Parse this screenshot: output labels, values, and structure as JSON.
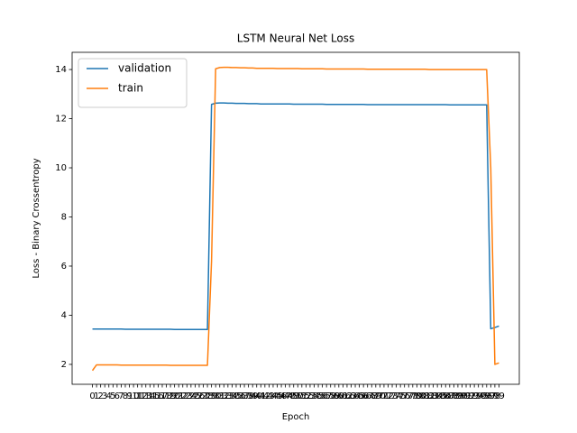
{
  "chart_data": {
    "type": "line",
    "title": "LSTM Neural Net Loss",
    "x_label": "Epoch",
    "y_label": "Loss - Binary Crossentropy",
    "categories": [
      "0",
      "1",
      "2",
      "3",
      "4",
      "5",
      "6",
      "7",
      "8",
      "9",
      "10",
      "11",
      "12",
      "13",
      "14",
      "15",
      "16",
      "17",
      "18",
      "19",
      "20",
      "21",
      "22",
      "23",
      "24",
      "25",
      "26",
      "27",
      "28",
      "29",
      "30",
      "31",
      "32",
      "33",
      "34",
      "35",
      "36",
      "37",
      "38",
      "39",
      "40",
      "41",
      "42",
      "43",
      "44",
      "45",
      "46",
      "47",
      "48",
      "49",
      "50",
      "51",
      "52",
      "53",
      "54",
      "55",
      "56",
      "57",
      "58",
      "59",
      "60",
      "61",
      "62",
      "63",
      "64",
      "65",
      "66",
      "67",
      "68",
      "69",
      "70",
      "71",
      "72",
      "73",
      "74",
      "75",
      "76",
      "77",
      "78",
      "79",
      "80",
      "81",
      "82",
      "83",
      "84",
      "85",
      "86",
      "87",
      "88",
      "89",
      "90",
      "91",
      "92",
      "93",
      "94",
      "95",
      "96",
      "97",
      "98",
      "99"
    ],
    "series": [
      {
        "name": "validation",
        "color": "#1f77b4",
        "values": [
          3.44,
          3.44,
          3.44,
          3.44,
          3.44,
          3.44,
          3.44,
          3.44,
          3.43,
          3.43,
          3.43,
          3.43,
          3.43,
          3.43,
          3.43,
          3.43,
          3.43,
          3.43,
          3.43,
          3.43,
          3.42,
          3.42,
          3.42,
          3.42,
          3.42,
          3.42,
          3.42,
          3.42,
          3.42,
          12.58,
          12.63,
          12.64,
          12.64,
          12.63,
          12.63,
          12.62,
          12.62,
          12.62,
          12.61,
          12.61,
          12.61,
          12.6,
          12.6,
          12.6,
          12.6,
          12.6,
          12.6,
          12.6,
          12.6,
          12.59,
          12.59,
          12.59,
          12.59,
          12.59,
          12.59,
          12.59,
          12.59,
          12.58,
          12.58,
          12.58,
          12.58,
          12.58,
          12.58,
          12.58,
          12.58,
          12.58,
          12.58,
          12.57,
          12.57,
          12.57,
          12.57,
          12.57,
          12.57,
          12.57,
          12.57,
          12.57,
          12.57,
          12.57,
          12.57,
          12.57,
          12.57,
          12.57,
          12.57,
          12.57,
          12.57,
          12.57,
          12.57,
          12.56,
          12.56,
          12.56,
          12.56,
          12.56,
          12.56,
          12.56,
          12.56,
          12.56,
          12.56,
          3.45,
          3.5,
          3.56
        ]
      },
      {
        "name": "train",
        "color": "#ff7f0e",
        "values": [
          1.75,
          1.98,
          1.98,
          1.98,
          1.98,
          1.98,
          1.98,
          1.97,
          1.97,
          1.97,
          1.97,
          1.97,
          1.97,
          1.97,
          1.97,
          1.97,
          1.97,
          1.97,
          1.97,
          1.96,
          1.96,
          1.96,
          1.96,
          1.96,
          1.96,
          1.96,
          1.96,
          1.96,
          1.96,
          6.2,
          14.03,
          14.08,
          14.09,
          14.09,
          14.08,
          14.08,
          14.07,
          14.07,
          14.06,
          14.06,
          14.05,
          14.05,
          14.05,
          14.05,
          14.05,
          14.04,
          14.04,
          14.04,
          14.04,
          14.04,
          14.04,
          14.03,
          14.03,
          14.03,
          14.03,
          14.03,
          14.03,
          14.02,
          14.02,
          14.02,
          14.02,
          14.02,
          14.02,
          14.02,
          14.02,
          14.02,
          14.02,
          14.01,
          14.01,
          14.01,
          14.01,
          14.01,
          14.01,
          14.01,
          14.01,
          14.01,
          14.01,
          14.01,
          14.01,
          14.01,
          14.01,
          14.01,
          14.0,
          14.0,
          14.0,
          14.0,
          14.0,
          14.0,
          14.0,
          14.0,
          14.0,
          14.0,
          14.0,
          14.0,
          14.0,
          14.0,
          14.0,
          10.0,
          2.0,
          2.06
        ]
      }
    ],
    "ylim": [
      1.19,
      14.7
    ],
    "yticks": [
      2,
      4,
      6,
      8,
      10,
      12,
      14
    ],
    "grid": false,
    "legend": "upper-left"
  }
}
